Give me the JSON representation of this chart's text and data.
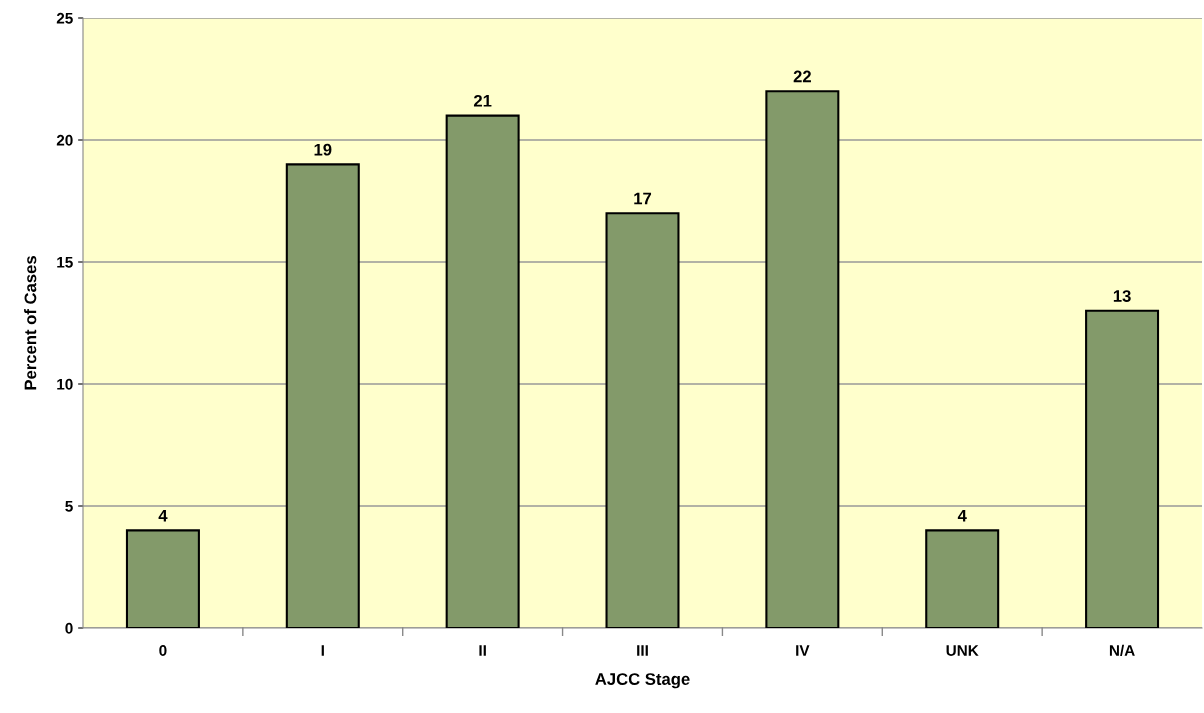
{
  "chart_data": {
    "type": "bar",
    "xlabel": "AJCC Stage",
    "ylabel": "Percent of Cases",
    "categories": [
      "0",
      "I",
      "II",
      "III",
      "IV",
      "UNK",
      "N/A"
    ],
    "values": [
      4,
      19,
      21,
      17,
      22,
      4,
      13
    ],
    "color": "#839a6a",
    "ylim": [
      0,
      25
    ],
    "yticks": [
      0,
      5,
      10,
      15,
      20,
      25
    ],
    "grid": "y",
    "data_labels": true
  }
}
